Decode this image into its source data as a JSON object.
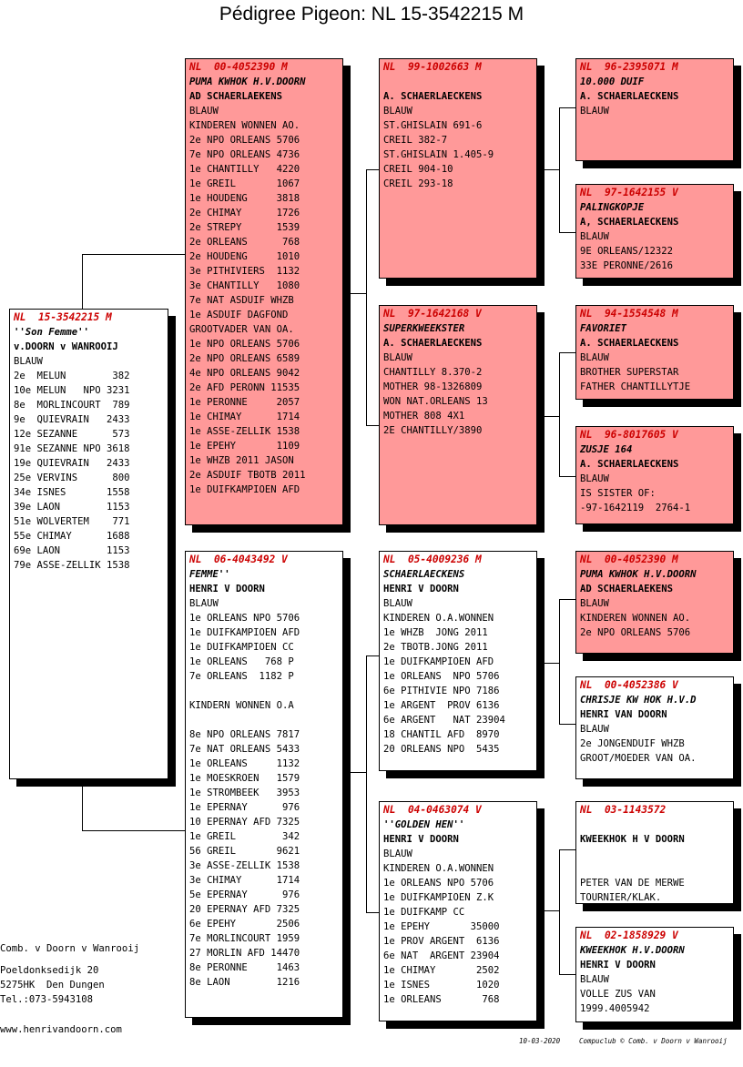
{
  "title": "Pédigree Pigeon: NL  15-3542215 M",
  "cards": {
    "subject": {
      "ring": "NL  15-3542215 M",
      "name": "''Son Femme''",
      "breeder": "v.DOORN v WANROOIJ",
      "lines": [
        "BLAUW",
        "2e  MELUN        382",
        "10e MELUN   NPO 3231",
        "8e  MORLINCOURT  789",
        "9e  QUIEVRAIN   2433",
        "12e SEZANNE      573",
        "91e SEZANNE NPO 3618",
        "19e QUIEVRAIN   2433",
        "25e VERVINS      800",
        "34e ISNES       1558",
        "39e LAON        1153",
        "51e WOLVERTEM    771",
        "55e CHIMAY      1688",
        "69e LAON        1153",
        "79e ASSE-ZELLIK 1538"
      ]
    },
    "father": {
      "ring": "NL  00-4052390 M",
      "name": "PUMA KWHOK H.V.DOORN",
      "breeder": "AD SCHAERLAEKENS",
      "lines": [
        "BLAUW",
        "KINDEREN WONNEN AO.",
        "2e NPO ORLEANS 5706",
        "7e NPO ORLEANS 4736",
        "1e CHANTILLY   4220",
        "1e GREIL       1067",
        "1e HOUDENG     3818",
        "2e CHIMAY      1726",
        "2e STREPY      1539",
        "2e ORLEANS      768",
        "2e HOUDENG     1010",
        "3e PITHIVIERS  1132",
        "3e CHANTILLY   1080",
        "7e NAT ASDUIF WHZB",
        "1e ASDUIF DAGFOND",
        "GROOTVADER VAN OA.",
        "1e NPO ORLEANS 5706",
        "2e NPO ORLEANS 6589",
        "4e NPO ORLEANS 9042",
        "2e AFD PERONN 11535",
        "1e PERONNE     2057",
        "1e CHIMAY      1714",
        "1e ASSE-ZELLIK 1538",
        "1e EPEHY       1109",
        "1e WHZB 2011 JASON",
        "2e ASDUIF TBOTB 2011",
        "1e DUIFKAMPIOEN AFD"
      ]
    },
    "mother": {
      "ring": "NL  06-4043492 V",
      "name": "FEMME''",
      "breeder": "HENRI V DOORN",
      "lines": [
        "BLAUW",
        "1e ORLEANS NPO 5706",
        "1e DUIFKAMPIOEN AFD",
        "1e DUIFKAMPIOEN CC",
        "1e ORLEANS   768 P",
        "7e ORLEANS  1182 P",
        "",
        "KINDERN WONNEN O.A",
        "",
        "8e NPO ORLEANS 7817",
        "7e NAT ORLEANS 5433",
        "1e ORLEANS     1132",
        "1e MOESKROEN   1579",
        "1e STROMBEEK   3953",
        "1e EPERNAY      976",
        "10 EPERNAY AFD 7325",
        "1e GREIL        342",
        "56 GREIL       9621",
        "3e ASSE-ZELLIK 1538",
        "3e CHIMAY      1714",
        "5e EPERNAY      976",
        "20 EPERNAY AFD 7325",
        "6e EPEHY       2506",
        "7e MORLINCOURT 1959",
        "27 MORLIN AFD 14470",
        "8e PERONNE     1463",
        "8e LAON        1216"
      ]
    },
    "ff": {
      "ring": "NL  99-1002663 M",
      "name": "",
      "breeder": "A. SCHAERLAECKENS",
      "lines": [
        "BLAUW",
        "ST.GHISLAIN 691-6",
        "CREIL 382-7",
        "ST.GHISLAIN 1.405-9",
        "CREIL 904-10",
        "CREIL 293-18"
      ]
    },
    "fm": {
      "ring": "NL  97-1642168 V",
      "name": "SUPERKWEEKSTER",
      "breeder": "A. SCHAERLAECKENS",
      "lines": [
        "BLAUW",
        "CHANTILLY 8.370-2",
        "MOTHER 98-1326809",
        "WON NAT.ORLEANS 13",
        "MOTHER 808 4X1",
        "2E CHANTILLY/3890"
      ]
    },
    "mf": {
      "ring": "NL  05-4009236 M",
      "name": "SCHAERLAECKENS",
      "breeder": "HENRI V DOORN",
      "lines": [
        "BLAUW",
        "KINDEREN O.A.WONNEN",
        "1e WHZB  JONG 2011",
        "2e TBOTB.JONG 2011",
        "1e DUIFKAMPIOEN AFD",
        "1e ORLEANS  NPO 5706",
        "6e PITHIVIE NPO 7186",
        "1e ARGENT  PROV 6136",
        "6e ARGENT   NAT 23904",
        "18 CHANTIL AFD  8970",
        "20 ORLEANS NPO  5435"
      ]
    },
    "mm": {
      "ring": "NL  04-0463074 V",
      "name": "''GOLDEN HEN''",
      "breeder": "HENRI V DOORN",
      "lines": [
        "BLAUW",
        "KINDEREN O.A.WONNEN",
        "1e ORLEANS NPO 5706",
        "1e DUIFKAMPIOEN Z.K",
        "1e DUIFKAMP CC",
        "1e EPEHY       35000",
        "1e PROV ARGENT  6136",
        "6e NAT  ARGENT 23904",
        "1e CHIMAY       2502",
        "1e ISNES        1020",
        "1e ORLEANS       768"
      ]
    },
    "fff": {
      "ring": "NL  96-2395071 M",
      "name": "10.000 DUIF",
      "breeder": "A. SCHAERLAECKENS",
      "lines": [
        "BLAUW"
      ]
    },
    "ffm": {
      "ring": "NL  97-1642155 V",
      "name": "PALINGKOPJE",
      "breeder": "A, SCHAERLAECKENS",
      "lines": [
        "BLAUW",
        "9E ORLEANS/12322",
        "33E PERONNE/2616"
      ]
    },
    "fmf": {
      "ring": "NL  94-1554548 M",
      "name": "FAVORIET",
      "breeder": "A. SCHAERLAECKENS",
      "lines": [
        "BLAUW",
        "BROTHER SUPERSTAR",
        "FATHER CHANTILLYTJE"
      ]
    },
    "fmm": {
      "ring": "NL  96-8017605 V",
      "name": "ZUSJE 164",
      "breeder": "A. SCHAERLAECKENS",
      "lines": [
        "BLAUW",
        "IS SISTER OF:",
        "-97-1642119  2764-1"
      ]
    },
    "mff": {
      "ring": "NL  00-4052390 M",
      "name": "PUMA KWHOK H.V.DOORN",
      "breeder": "AD SCHAERLAEKENS",
      "lines": [
        "BLAUW",
        "KINDEREN WONNEN AO.",
        "2e NPO ORLEANS 5706"
      ]
    },
    "mfm": {
      "ring": "NL  00-4052386 V",
      "name": "CHRISJE KW HOK H.V.D",
      "breeder": "HENRI VAN DOORN",
      "lines": [
        "BLAUW",
        "2e JONGENDUIF WHZB",
        "GROOT/MOEDER VAN OA."
      ]
    },
    "mmf": {
      "ring": "NL  03-1143572",
      "name": "",
      "breeder": "KWEEKHOK H V DOORN",
      "lines": [
        "",
        "",
        "PETER VAN DE MERWE",
        "TOURNIER/KLAK."
      ]
    },
    "mmm": {
      "ring": "NL  02-1858929 V",
      "name": "KWEEKHOK H.V.DOORN",
      "breeder": "HENRI V DOORN",
      "lines": [
        "BLAUW",
        "VOLLE ZUS VAN",
        "1999.4005942"
      ]
    }
  },
  "footer": {
    "owner": "Comb. v Doorn v Wanrooij",
    "street": "Poeldonksedijk 20",
    "city": "5275HK  Den Dungen",
    "phone": "Tel.:073-5943108",
    "web": "www.henrivandoorn.com",
    "date": "10-03-2020",
    "credit": "Compuclub © Comb. v Doorn v Wanrooij"
  },
  "colors": {
    "sire_line": "#ff9999",
    "dam_line": "#ffffff",
    "ring_text": "#cc0000"
  }
}
